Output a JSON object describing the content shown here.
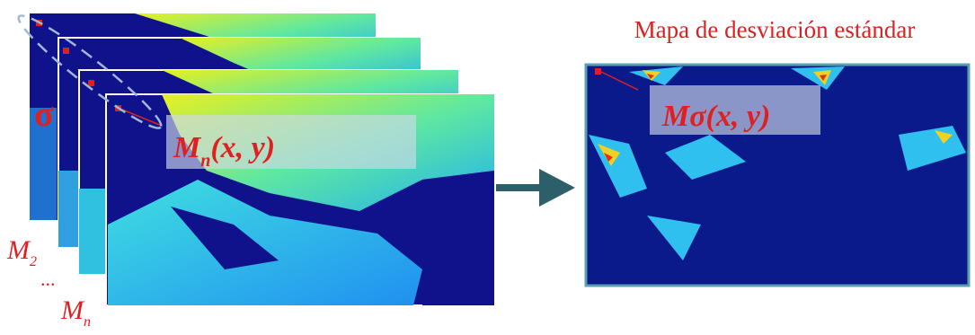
{
  "title": "Mapa de desviación estándar",
  "sigma_symbol": "σ",
  "stack_labels": {
    "m2": {
      "base": "M",
      "sub": "2"
    },
    "ellipsis": "...",
    "mn": {
      "base": "M",
      "sub": "n"
    }
  },
  "frame_label": {
    "base": "M",
    "sub": "n",
    "args": "(x, y)"
  },
  "result_label": "Mσ(x, y)"
}
